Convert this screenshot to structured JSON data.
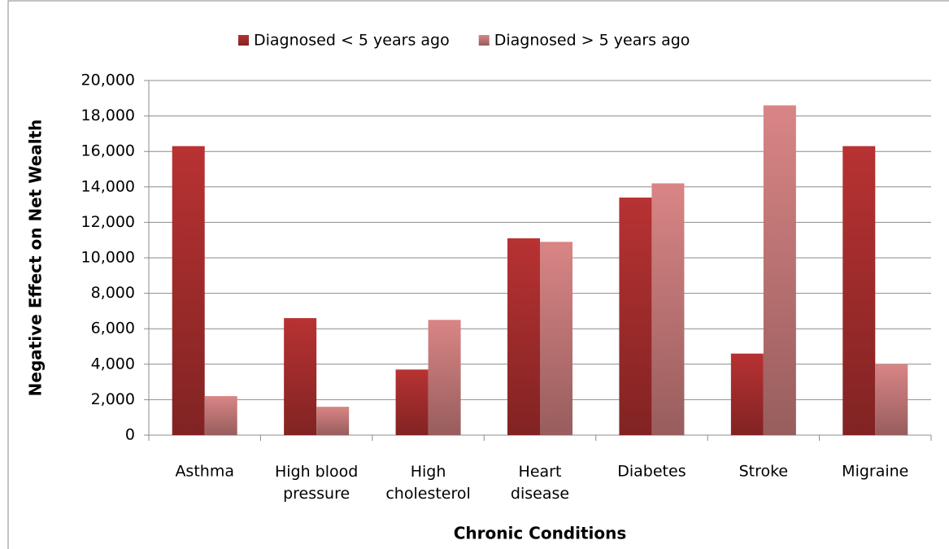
{
  "chart_data": {
    "type": "bar",
    "categories": [
      "Asthma",
      "High blood pressure",
      "High cholesterol",
      "Heart disease",
      "Diabetes",
      "Stroke",
      "Migraine"
    ],
    "series": [
      {
        "name": "Diagnosed < 5 years ago",
        "color": "#b83232",
        "values": [
          16300,
          6600,
          3700,
          11100,
          13400,
          4600,
          16300
        ]
      },
      {
        "name": "Diagnosed > 5 years ago",
        "color": "#d98585",
        "values": [
          2200,
          1600,
          6500,
          10900,
          14200,
          18600,
          4000
        ]
      }
    ],
    "x_label": "Chronic Conditions",
    "y_label": "Negative Effect on Net Wealth",
    "ylim": [
      0,
      20000
    ],
    "yticks": [
      0,
      {
        "value": 2000,
        "label": "2,000"
      },
      {
        "value": 4000,
        "label": "4,000"
      },
      {
        "value": 6000,
        "label": "6,000"
      },
      {
        "value": 8000,
        "label": "8,000"
      },
      {
        "value": 10000,
        "label": "10,000"
      },
      {
        "value": 12000,
        "label": "12,000"
      },
      {
        "value": 14000,
        "label": "14,000"
      },
      {
        "value": 16000,
        "label": "16,000"
      },
      {
        "value": 18000,
        "label": "18,000"
      },
      {
        "value": 20000,
        "label": "20,000"
      }
    ],
    "grid": true,
    "legend": "top"
  }
}
